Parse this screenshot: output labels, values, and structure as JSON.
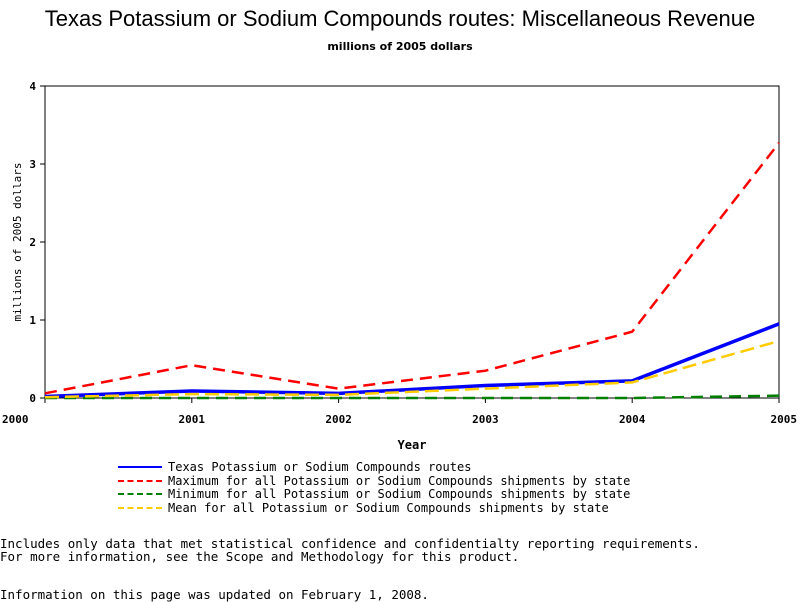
{
  "chart_data": {
    "type": "line",
    "title": "Texas Potassium or Sodium Compounds routes: Miscellaneous Revenue",
    "subtitle": "millions of 2005 dollars",
    "xlabel": "Year",
    "ylabel": "millions of 2005 dollars",
    "x": [
      2000,
      2001,
      2002,
      2003,
      2004,
      2005
    ],
    "xlim": [
      2000,
      2005
    ],
    "ylim": [
      0,
      4
    ],
    "yticks": [
      0,
      1,
      2,
      3,
      4
    ],
    "grid": false,
    "legend_position": "bottom",
    "series": [
      {
        "name": "Texas Potassium or Sodium Compounds routes",
        "values": [
          0.02,
          0.09,
          0.06,
          0.16,
          0.22,
          0.95
        ],
        "color": "#0000ff",
        "style": "solid"
      },
      {
        "name": "Maximum for all Potassium or Sodium Compounds shipments by state",
        "values": [
          0.06,
          0.42,
          0.12,
          0.35,
          0.85,
          3.27
        ],
        "color": "#ff0000",
        "style": "dashed"
      },
      {
        "name": "Minimum for all Potassium or Sodium Compounds shipments by state",
        "values": [
          0.0,
          0.0,
          0.0,
          0.0,
          0.0,
          0.03
        ],
        "color": "#008000",
        "style": "dashed"
      },
      {
        "name": "Mean for all Potassium or Sodium Compounds shipments by state",
        "values": [
          0.01,
          0.05,
          0.04,
          0.12,
          0.2,
          0.73
        ],
        "color": "#ffcc00",
        "style": "dashed"
      }
    ]
  },
  "notes": {
    "line1": "Includes only data that met statistical confidence and confidentialty reporting requirements.",
    "line2": "For more information, see the Scope and Methodology for this product.",
    "updated": "Information on this page was updated on February 1, 2008."
  }
}
